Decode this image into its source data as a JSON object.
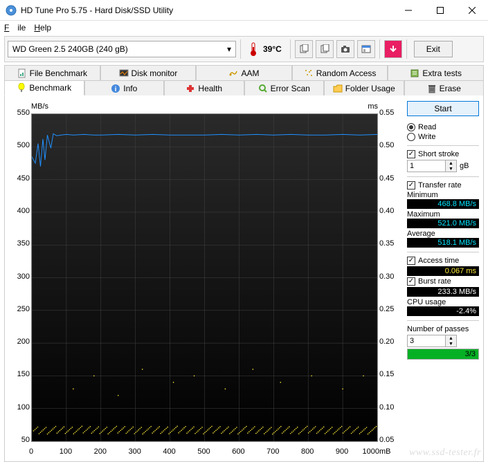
{
  "window": {
    "title": "HD Tune Pro 5.75 - Hard Disk/SSD Utility"
  },
  "menu": {
    "file": "File",
    "help": "Help"
  },
  "toolbar": {
    "drive": "WD Green 2.5 240GB (240 gB)",
    "temperature": "39°C",
    "exit": "Exit"
  },
  "tabs_row1": [
    {
      "id": "file-benchmark",
      "label": "File Benchmark",
      "icon": "file-benchmark-icon"
    },
    {
      "id": "disk-monitor",
      "label": "Disk monitor",
      "icon": "disk-monitor-icon"
    },
    {
      "id": "aam",
      "label": "AAM",
      "icon": "aam-icon"
    },
    {
      "id": "random-access",
      "label": "Random Access",
      "icon": "random-access-icon"
    },
    {
      "id": "extra-tests",
      "label": "Extra tests",
      "icon": "extra-tests-icon"
    }
  ],
  "tabs_row2": [
    {
      "id": "benchmark",
      "label": "Benchmark",
      "icon": "benchmark-icon",
      "active": true
    },
    {
      "id": "info",
      "label": "Info",
      "icon": "info-icon"
    },
    {
      "id": "health",
      "label": "Health",
      "icon": "health-icon"
    },
    {
      "id": "error-scan",
      "label": "Error Scan",
      "icon": "error-scan-icon"
    },
    {
      "id": "folder-usage",
      "label": "Folder Usage",
      "icon": "folder-usage-icon"
    },
    {
      "id": "erase",
      "label": "Erase",
      "icon": "erase-icon"
    }
  ],
  "sidebar": {
    "start": "Start",
    "read": "Read",
    "write": "Write",
    "short_stroke": "Short stroke",
    "short_stroke_value": "1",
    "short_stroke_unit": "gB",
    "transfer_rate": "Transfer rate",
    "minimum_label": "Minimum",
    "minimum_value": "468.8 MB/s",
    "maximum_label": "Maximum",
    "maximum_value": "521.0 MB/s",
    "average_label": "Average",
    "average_value": "518.1 MB/s",
    "access_time_label": "Access time",
    "access_time_value": "0.067 ms",
    "burst_rate_label": "Burst rate",
    "burst_rate_value": "233.3 MB/s",
    "cpu_usage_label": "CPU usage",
    "cpu_usage_value": "-2.4%",
    "passes_label": "Number of passes",
    "passes_value": "3",
    "progress_text": "3/3",
    "progress_pct": 100
  },
  "chart": {
    "ylabel_left": "MB/s",
    "ylabel_right": "ms",
    "y_left": {
      "min": 50,
      "max": 550,
      "step": 50
    },
    "y_right": {
      "min": 0.05,
      "max": 0.55,
      "step": 0.05
    },
    "x": {
      "min": 0,
      "max": 1000,
      "step": 100,
      "unit": "mB"
    },
    "colors": {
      "background_top": "#2a2a2a",
      "background_bottom": "#000000",
      "grid": "#444444",
      "transfer_line": "#2090ff",
      "access_points": "#ffeb3b"
    },
    "transfer_series": [
      [
        0,
        485
      ],
      [
        10,
        475
      ],
      [
        18,
        505
      ],
      [
        25,
        470
      ],
      [
        32,
        512
      ],
      [
        38,
        480
      ],
      [
        45,
        518
      ],
      [
        55,
        498
      ],
      [
        62,
        520
      ],
      [
        72,
        517
      ],
      [
        85,
        518
      ],
      [
        100,
        519
      ],
      [
        120,
        518
      ],
      [
        150,
        519
      ],
      [
        180,
        518
      ],
      [
        200,
        518
      ],
      [
        250,
        519
      ],
      [
        300,
        518
      ],
      [
        350,
        519
      ],
      [
        400,
        518
      ],
      [
        450,
        518
      ],
      [
        500,
        518
      ],
      [
        550,
        519
      ],
      [
        600,
        518
      ],
      [
        650,
        519
      ],
      [
        700,
        518
      ],
      [
        750,
        519
      ],
      [
        800,
        518
      ],
      [
        850,
        518
      ],
      [
        900,
        519
      ],
      [
        950,
        518
      ],
      [
        1000,
        519
      ]
    ],
    "access_series_ms": {
      "mean": 0.067,
      "jitter": 0.006,
      "spikes": [
        [
          120,
          0.13
        ],
        [
          180,
          0.15
        ],
        [
          250,
          0.12
        ],
        [
          320,
          0.16
        ],
        [
          410,
          0.14
        ],
        [
          470,
          0.15
        ],
        [
          560,
          0.13
        ],
        [
          640,
          0.16
        ],
        [
          720,
          0.14
        ],
        [
          810,
          0.15
        ],
        [
          900,
          0.13
        ],
        [
          960,
          0.15
        ]
      ]
    }
  },
  "watermark": "www.ssd-tester.fr"
}
